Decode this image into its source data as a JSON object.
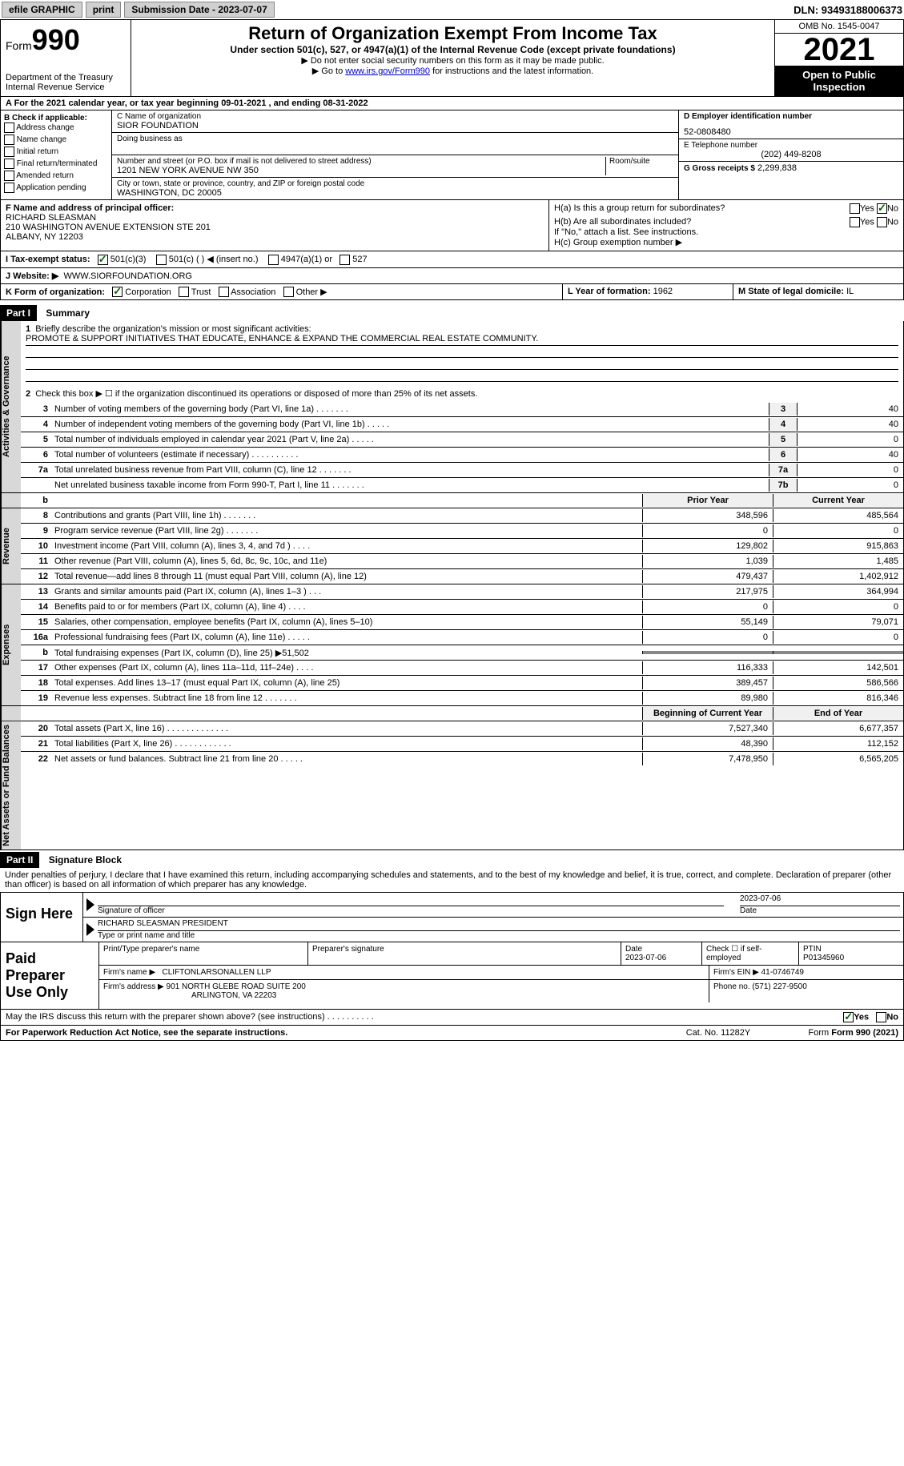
{
  "topbar": {
    "efile": "efile GRAPHIC",
    "print": "print",
    "submission": "Submission Date - 2023-07-07",
    "dln": "DLN: 93493188006373"
  },
  "header": {
    "form_label": "Form",
    "form_num": "990",
    "dept": "Department of the Treasury",
    "irs": "Internal Revenue Service",
    "title": "Return of Organization Exempt From Income Tax",
    "subtitle": "Under section 501(c), 527, or 4947(a)(1) of the Internal Revenue Code (except private foundations)",
    "hint1": "▶ Do not enter social security numbers on this form as it may be made public.",
    "hint2_pre": "▶ Go to ",
    "hint2_link": "www.irs.gov/Form990",
    "hint2_post": " for instructions and the latest information.",
    "omb": "OMB No. 1545-0047",
    "year": "2021",
    "open": "Open to Public Inspection"
  },
  "rowA": "A For the 2021 calendar year, or tax year beginning 09-01-2021    , and ending 08-31-2022",
  "colB": {
    "label": "B Check if applicable:",
    "opts": [
      "Address change",
      "Name change",
      "Initial return",
      "Final return/terminated",
      "Amended return",
      "Application pending"
    ]
  },
  "colC": {
    "name_lbl": "C Name of organization",
    "name": "SIOR FOUNDATION",
    "dba_lbl": "Doing business as",
    "addr_lbl": "Number and street (or P.O. box if mail is not delivered to street address)",
    "room_lbl": "Room/suite",
    "addr": "1201 NEW YORK AVENUE NW 350",
    "city_lbl": "City or town, state or province, country, and ZIP or foreign postal code",
    "city": "WASHINGTON, DC  20005"
  },
  "colD": {
    "ein_lbl": "D Employer identification number",
    "ein": "52-0808480",
    "tel_lbl": "E Telephone number",
    "tel": "(202) 449-8208",
    "gross_lbl": "G Gross receipts $",
    "gross": "2,299,838"
  },
  "colF": {
    "lbl": "F  Name and address of principal officer:",
    "name": "RICHARD SLEASMAN",
    "addr1": "210 WASHINGTON AVENUE EXTENSION STE 201",
    "addr2": "ALBANY, NY  12203"
  },
  "colH": {
    "ha": "H(a)  Is this a group return for subordinates?",
    "hb": "H(b)  Are all subordinates included?",
    "hb_note": "If \"No,\" attach a list. See instructions.",
    "hc": "H(c)  Group exemption number ▶",
    "yes": "Yes",
    "no": "No"
  },
  "rowI": {
    "lbl": "I    Tax-exempt status:",
    "o1": "501(c)(3)",
    "o2": "501(c) (   ) ◀ (insert no.)",
    "o3": "4947(a)(1) or",
    "o4": "527"
  },
  "rowJ": {
    "lbl": "J    Website: ▶",
    "val": "WWW.SIORFOUNDATION.ORG"
  },
  "rowK": {
    "lbl": "K Form of organization:",
    "o1": "Corporation",
    "o2": "Trust",
    "o3": "Association",
    "o4": "Other ▶",
    "l_lbl": "L Year of formation:",
    "l_val": "1962",
    "m_lbl": "M State of legal domicile:",
    "m_val": "IL"
  },
  "part1": {
    "hdr": "Part I",
    "title": "Summary",
    "vtab_gov": "Activities & Governance",
    "vtab_rev": "Revenue",
    "vtab_exp": "Expenses",
    "vtab_net": "Net Assets or Fund Balances",
    "l1_lbl": "Briefly describe the organization's mission or most significant activities:",
    "l1_val": "PROMOTE & SUPPORT INITIATIVES THAT EDUCATE, ENHANCE & EXPAND THE COMMERCIAL REAL ESTATE COMMUNITY.",
    "l2": "Check this box ▶ ☐  if the organization discontinued its operations or disposed of more than 25% of its net assets.",
    "lines_gov": [
      {
        "n": "3",
        "t": "Number of voting members of the governing body (Part VI, line 1a)   .    .    .    .    .    .    .",
        "b": "3",
        "v": "40"
      },
      {
        "n": "4",
        "t": "Number of independent voting members of the governing body (Part VI, line 1b)   .    .    .    .    .",
        "b": "4",
        "v": "40"
      },
      {
        "n": "5",
        "t": "Total number of individuals employed in calendar year 2021 (Part V, line 2a)   .    .    .    .    .",
        "b": "5",
        "v": "0"
      },
      {
        "n": "6",
        "t": "Total number of volunteers (estimate if necessary)    .    .    .    .    .    .    .    .    .    .",
        "b": "6",
        "v": "40"
      },
      {
        "n": "7a",
        "t": "Total unrelated business revenue from Part VIII, column (C), line 12    .    .    .    .    .    .    .",
        "b": "7a",
        "v": "0"
      },
      {
        "n": "",
        "t": "Net unrelated business taxable income from Form 990-T, Part I, line 11   .    .    .    .    .    .    .",
        "b": "7b",
        "v": "0"
      }
    ],
    "col_prior": "Prior Year",
    "col_current": "Current Year",
    "lines_rev": [
      {
        "n": "8",
        "t": "Contributions and grants (Part VIII, line 1h)    .    .    .    .    .    .    .",
        "p": "348,596",
        "c": "485,564"
      },
      {
        "n": "9",
        "t": "Program service revenue (Part VIII, line 2g)    .    .    .    .    .    .    .",
        "p": "0",
        "c": "0"
      },
      {
        "n": "10",
        "t": "Investment income (Part VIII, column (A), lines 3, 4, and 7d )    .    .    .    .",
        "p": "129,802",
        "c": "915,863"
      },
      {
        "n": "11",
        "t": "Other revenue (Part VIII, column (A), lines 5, 6d, 8c, 9c, 10c, and 11e)",
        "p": "1,039",
        "c": "1,485"
      },
      {
        "n": "12",
        "t": "Total revenue—add lines 8 through 11 (must equal Part VIII, column (A), line 12)",
        "p": "479,437",
        "c": "1,402,912"
      }
    ],
    "lines_exp": [
      {
        "n": "13",
        "t": "Grants and similar amounts paid (Part IX, column (A), lines 1–3 )   .   .   .",
        "p": "217,975",
        "c": "364,994"
      },
      {
        "n": "14",
        "t": "Benefits paid to or for members (Part IX, column (A), line 4)   .   .   .   .",
        "p": "0",
        "c": "0"
      },
      {
        "n": "15",
        "t": "Salaries, other compensation, employee benefits (Part IX, column (A), lines 5–10)",
        "p": "55,149",
        "c": "79,071"
      },
      {
        "n": "16a",
        "t": "Professional fundraising fees (Part IX, column (A), line 11e)   .   .   .   .   .",
        "p": "0",
        "c": "0"
      },
      {
        "n": "b",
        "t": "Total fundraising expenses (Part IX, column (D), line 25) ▶51,502",
        "p": "",
        "c": "",
        "blk": true
      },
      {
        "n": "17",
        "t": "Other expenses (Part IX, column (A), lines 11a–11d, 11f–24e)    .   .   .   .",
        "p": "116,333",
        "c": "142,501"
      },
      {
        "n": "18",
        "t": "Total expenses. Add lines 13–17 (must equal Part IX, column (A), line 25)",
        "p": "389,457",
        "c": "586,566"
      },
      {
        "n": "19",
        "t": "Revenue less expenses. Subtract line 18 from line 12  .   .   .   .   .   .   .",
        "p": "89,980",
        "c": "816,346"
      }
    ],
    "col_begin": "Beginning of Current Year",
    "col_end": "End of Year",
    "lines_net": [
      {
        "n": "20",
        "t": "Total assets (Part X, line 16)  .   .   .   .   .   .   .   .   .   .   .   .   .",
        "p": "7,527,340",
        "c": "6,677,357"
      },
      {
        "n": "21",
        "t": "Total liabilities (Part X, line 26)  .   .   .   .   .   .   .   .   .   .   .   .",
        "p": "48,390",
        "c": "112,152"
      },
      {
        "n": "22",
        "t": "Net assets or fund balances. Subtract line 21 from line 20   .   .   .   .   .",
        "p": "7,478,950",
        "c": "6,565,205"
      }
    ]
  },
  "part2": {
    "hdr": "Part II",
    "title": "Signature Block",
    "penalties": "Under penalties of perjury, I declare that I have examined this return, including accompanying schedules and statements, and to the best of my knowledge and belief, it is true, correct, and complete. Declaration of preparer (other than officer) is based on all information of which preparer has any knowledge."
  },
  "sign": {
    "lbl": "Sign Here",
    "sig_lbl": "Signature of officer",
    "date": "2023-07-06",
    "date_lbl": "Date",
    "name": "RICHARD SLEASMAN  PRESIDENT",
    "name_lbl": "Type or print name and title"
  },
  "prep": {
    "lbl": "Paid Preparer Use Only",
    "pname_lbl": "Print/Type preparer's name",
    "psig_lbl": "Preparer's signature",
    "pdate_lbl": "Date",
    "pdate": "2023-07-06",
    "pcheck_lbl": "Check ☐ if self-employed",
    "ptin_lbl": "PTIN",
    "ptin": "P01345960",
    "firm_lbl": "Firm's name     ▶",
    "firm": "CLIFTONLARSONALLEN LLP",
    "fein_lbl": "Firm's EIN ▶",
    "fein": "41-0746749",
    "faddr_lbl": "Firm's address ▶",
    "faddr1": "901 NORTH GLEBE ROAD SUITE 200",
    "faddr2": "ARLINGTON, VA  22203",
    "fphone_lbl": "Phone no.",
    "fphone": "(571) 227-9500"
  },
  "footer": {
    "q": "May the IRS discuss this return with the preparer shown above? (see instructions)   .   .   .   .   .   .   .   .   .   .",
    "yes": "Yes",
    "no": "No",
    "paperwork": "For Paperwork Reduction Act Notice, see the separate instructions.",
    "cat": "Cat. No. 11282Y",
    "form": "Form 990 (2021)"
  }
}
